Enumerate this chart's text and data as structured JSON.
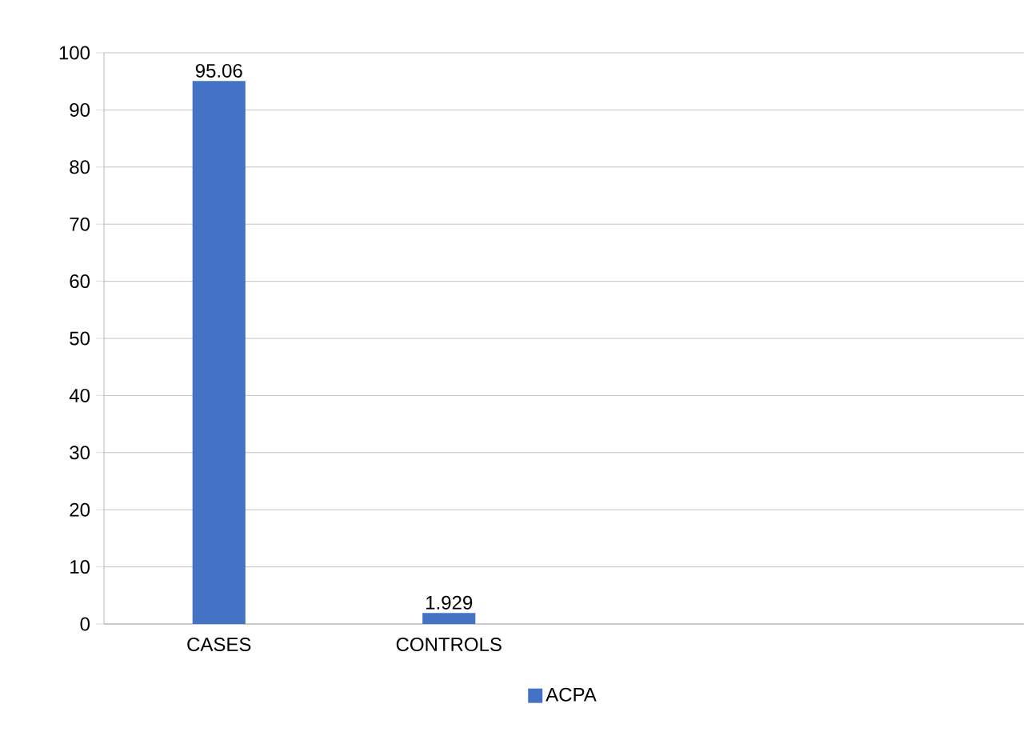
{
  "chart_data": {
    "type": "bar",
    "categories": [
      "CASES",
      "CONTROLS",
      null,
      null
    ],
    "series": [
      {
        "name": "ACPA",
        "color": "#4472c4",
        "values": [
          95.06,
          1.929,
          null,
          null
        ]
      }
    ],
    "ylim": [
      0,
      100
    ],
    "yticks": [
      0,
      10,
      20,
      30,
      40,
      50,
      60,
      70,
      80,
      90,
      100
    ],
    "grid": "y",
    "legend": "bottom",
    "data_labels": true
  }
}
